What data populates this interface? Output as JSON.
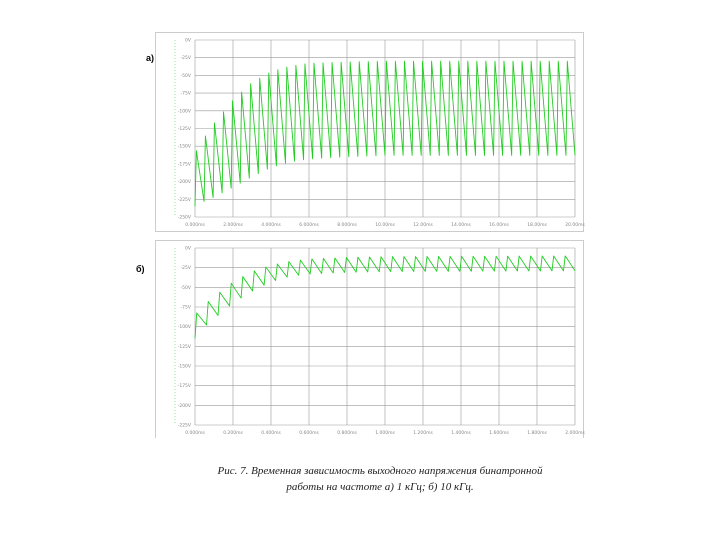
{
  "figure": {
    "label_a": "а)",
    "label_b": "б)",
    "caption_line1": "Рис. 7. Временная зависимость выходного напряжения бинатронной",
    "caption_line2": "работы на частоте а) 1 кГц; б) 10 кГц."
  },
  "colors": {
    "trace": "#22cc22",
    "grid": "#9a9a9a",
    "frame": "#cccccc",
    "axis_text": "#888888"
  },
  "chart_data": [
    {
      "type": "line",
      "panel": "а)",
      "title": "",
      "xlabel": "",
      "ylabel": "",
      "grid": true,
      "y_ticks": [
        "0V",
        "-25V",
        "-50V",
        "-75V",
        "-100V",
        "-125V",
        "-150V",
        "-175V",
        "-200V",
        "-225V",
        "-250V"
      ],
      "x_ticks": [
        "0.000ms",
        "2.000ms",
        "4.000ms",
        "6.000ms",
        "8.000ms",
        "10.00ms",
        "12.00ms",
        "14.00ms",
        "16.00ms",
        "18.00ms",
        "20.00ms"
      ],
      "xlim": [
        0,
        20
      ],
      "ylim": [
        -250,
        0
      ],
      "series": [
        {
          "frequency_khz": 1,
          "upper_envelope": [
            [
              0.0,
              -160
            ],
            [
              0.3,
              -145
            ],
            [
              1.0,
              -118
            ],
            [
              2.0,
              -85
            ],
            [
              3.0,
              -60
            ],
            [
              4.0,
              -45
            ],
            [
              5.0,
              -37
            ],
            [
              6.0,
              -33
            ],
            [
              8.0,
              -31
            ],
            [
              10.0,
              -30
            ],
            [
              20.0,
              -30
            ]
          ],
          "lower_envelope": [
            [
              0.0,
              -235
            ],
            [
              0.3,
              -230
            ],
            [
              1.0,
              -222
            ],
            [
              2.0,
              -208
            ],
            [
              3.0,
              -193
            ],
            [
              4.0,
              -180
            ],
            [
              5.0,
              -172
            ],
            [
              6.0,
              -168
            ],
            [
              8.0,
              -165
            ],
            [
              10.0,
              -163
            ],
            [
              20.0,
              -163
            ]
          ]
        }
      ]
    },
    {
      "type": "line",
      "panel": "б)",
      "title": "",
      "xlabel": "",
      "ylabel": "",
      "grid": true,
      "y_ticks": [
        "0V",
        "-25V",
        "-50V",
        "-75V",
        "-100V",
        "-125V",
        "-150V",
        "-175V",
        "-200V",
        "-225V"
      ],
      "x_ticks": [
        "0.000ms",
        "0.200ms",
        "0.400ms",
        "0.600ms",
        "0.800ms",
        "1.000ms",
        "1.200ms",
        "1.400ms",
        "1.600ms",
        "1.800ms",
        "2.000ms"
      ],
      "xlim": [
        0,
        2
      ],
      "ylim": [
        -225,
        0
      ],
      "series": [
        {
          "frequency_khz": 10,
          "upper_envelope": [
            [
              0.0,
              -85
            ],
            [
              0.05,
              -72
            ],
            [
              0.1,
              -62
            ],
            [
              0.2,
              -43
            ],
            [
              0.3,
              -30
            ],
            [
              0.4,
              -22
            ],
            [
              0.5,
              -17
            ],
            [
              0.6,
              -14
            ],
            [
              0.8,
              -12
            ],
            [
              1.0,
              -11
            ],
            [
              2.0,
              -10
            ]
          ],
          "lower_envelope": [
            [
              0.0,
              -115
            ],
            [
              0.05,
              -100
            ],
            [
              0.1,
              -90
            ],
            [
              0.2,
              -70
            ],
            [
              0.3,
              -55
            ],
            [
              0.4,
              -43
            ],
            [
              0.5,
              -36
            ],
            [
              0.6,
              -33
            ],
            [
              0.8,
              -31
            ],
            [
              1.0,
              -30
            ],
            [
              2.0,
              -29
            ]
          ]
        }
      ]
    }
  ]
}
